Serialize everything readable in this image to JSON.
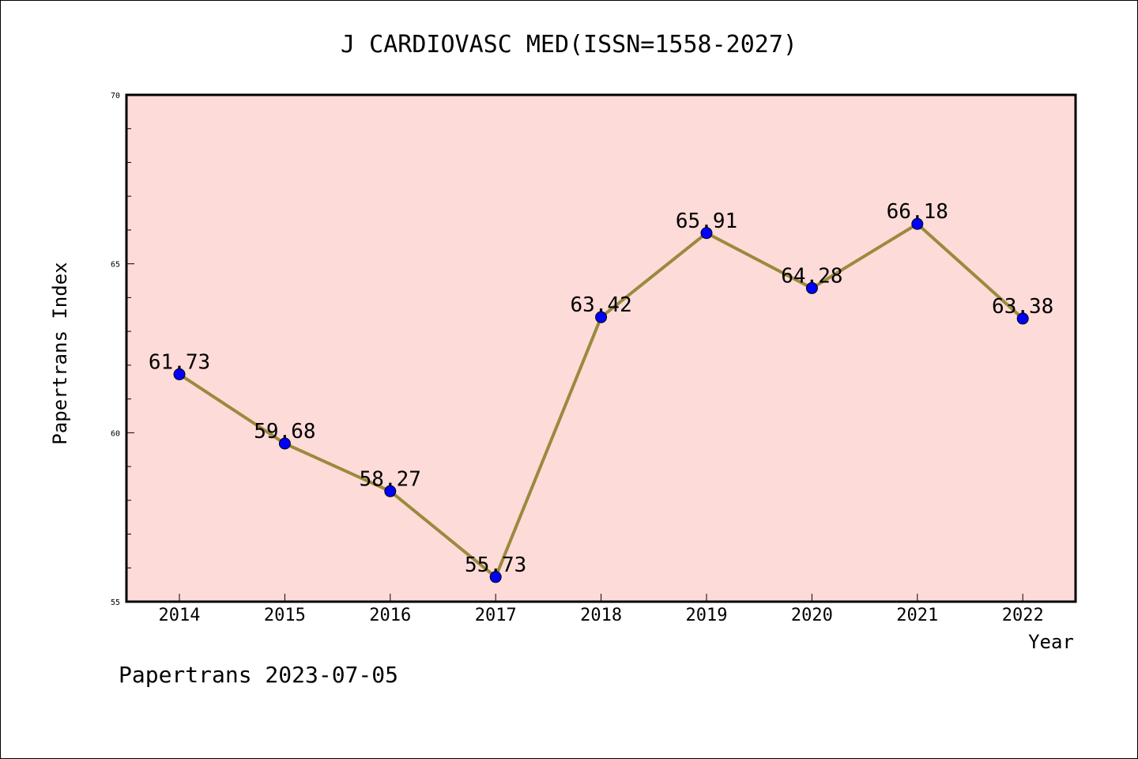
{
  "chart_data": {
    "type": "line",
    "title": "J CARDIOVASC MED(ISSN=1558-2027)",
    "xlabel": "Year",
    "ylabel": "Papertrans Index",
    "categories": [
      "2014",
      "2015",
      "2016",
      "2017",
      "2018",
      "2019",
      "2020",
      "2021",
      "2022"
    ],
    "values": [
      61.73,
      59.68,
      58.27,
      55.73,
      63.42,
      65.91,
      64.28,
      66.18,
      63.38
    ],
    "data_labels": [
      "61.73",
      "59.68",
      "58.27",
      "55.73",
      "63.42",
      "65.91",
      "64.28",
      "66.18",
      "63.38"
    ],
    "ylim": [
      55,
      70
    ],
    "yticks": [
      "55",
      "60",
      "65",
      "70"
    ],
    "grid": false,
    "colors": {
      "plot_background": "#fddbd8",
      "line": "#9a8a3e",
      "marker": "#0000ff"
    }
  },
  "footer": "Papertrans 2023-07-05"
}
